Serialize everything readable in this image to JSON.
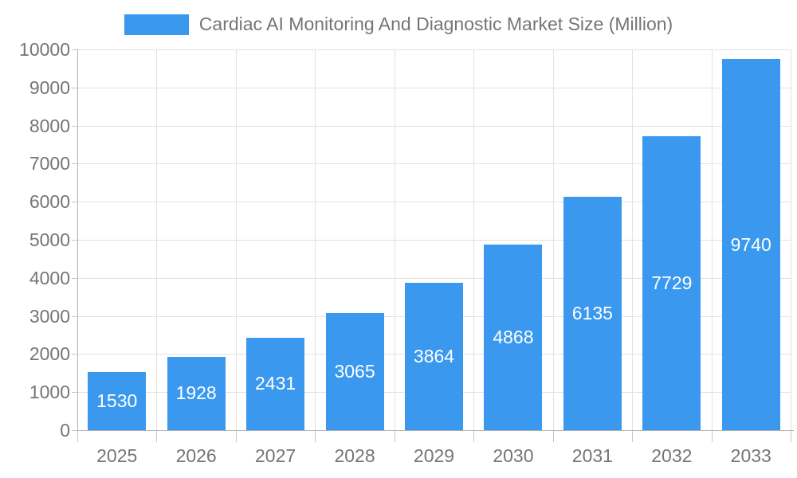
{
  "chart_data": {
    "type": "bar",
    "title": "Cardiac AI Monitoring And Diagnostic Market Size (Million)",
    "legend_position": "top",
    "categories": [
      "2025",
      "2026",
      "2027",
      "2028",
      "2029",
      "2030",
      "2031",
      "2032",
      "2033"
    ],
    "series": [
      {
        "name": "Cardiac AI Monitoring And Diagnostic Market Size (Million)",
        "values": [
          1530,
          1928,
          2431,
          3065,
          3864,
          4868,
          6135,
          7729,
          9740
        ]
      }
    ],
    "xlabel": "",
    "ylabel": "",
    "ylim": [
      0,
      10000
    ],
    "ytick_step": 1000,
    "ytick_labels": [
      "0",
      "1000",
      "2000",
      "3000",
      "4000",
      "5000",
      "6000",
      "7000",
      "8000",
      "9000",
      "10000"
    ],
    "grid": true,
    "bar_labels_inside": true,
    "colors": {
      "bar": "#3a99ee",
      "bar_label": "#ffffff",
      "axis_text": "#757575",
      "grid_line": "#e2e2e2",
      "axis_line": "#b0b0b0",
      "tick_line": "#c6c6c6",
      "background": "#ffffff"
    }
  }
}
